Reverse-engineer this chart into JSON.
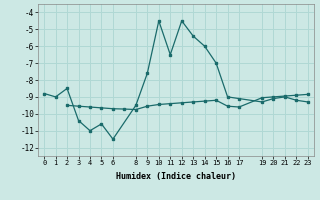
{
  "xlabel": "Humidex (Indice chaleur)",
  "bg_color": "#cce8e4",
  "grid_color": "#b0d8d4",
  "line_color": "#1a6b6b",
  "xlim": [
    -0.5,
    23.5
  ],
  "ylim": [
    -12.5,
    -3.5
  ],
  "yticks": [
    -12,
    -11,
    -10,
    -9,
    -8,
    -7,
    -6,
    -5,
    -4
  ],
  "xticks": [
    0,
    1,
    2,
    3,
    4,
    5,
    6,
    8,
    9,
    10,
    11,
    12,
    13,
    14,
    15,
    16,
    17,
    19,
    20,
    21,
    22,
    23
  ],
  "line1_x": [
    0,
    1,
    2,
    3,
    4,
    5,
    6,
    8,
    9,
    10,
    11,
    12,
    13,
    14,
    15,
    16,
    17,
    19,
    20,
    21,
    22,
    23
  ],
  "line1_y": [
    -8.8,
    -9.0,
    -8.5,
    -10.4,
    -11.0,
    -10.6,
    -11.5,
    -9.5,
    -7.6,
    -4.5,
    -6.5,
    -4.5,
    -5.4,
    -6.0,
    -7.0,
    -9.0,
    -9.1,
    -9.3,
    -9.1,
    -9.0,
    -9.2,
    -9.3
  ],
  "line2_x": [
    2,
    3,
    4,
    5,
    6,
    7,
    8,
    9,
    10,
    11,
    12,
    13,
    14,
    15,
    16,
    17,
    19,
    20,
    21,
    22,
    23
  ],
  "line2_y": [
    -9.5,
    -9.55,
    -9.6,
    -9.65,
    -9.7,
    -9.72,
    -9.75,
    -9.55,
    -9.45,
    -9.4,
    -9.35,
    -9.3,
    -9.25,
    -9.2,
    -9.55,
    -9.6,
    -9.05,
    -9.0,
    -8.95,
    -8.9,
    -8.85
  ]
}
